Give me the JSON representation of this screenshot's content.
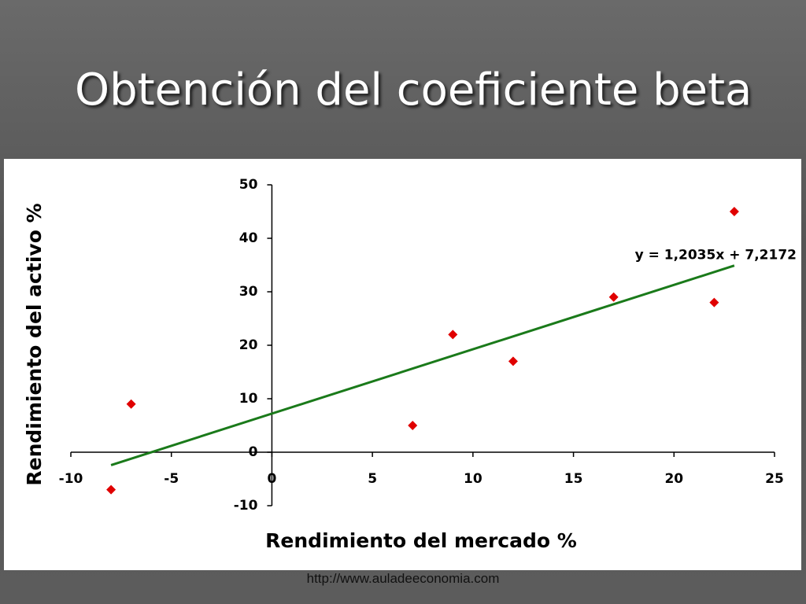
{
  "title": "Obtención del coeficiente beta",
  "footer": "http://www.auladeeconomia.com",
  "chart_data": {
    "type": "scatter",
    "x_label": "Rendimiento del mercado %",
    "y_label": "Rendimiento del activo %",
    "series": [
      {
        "color": "#e00000",
        "x": [
          -8,
          -7,
          7,
          9,
          12,
          17,
          22,
          23
        ],
        "values": [
          -7,
          9,
          5,
          22,
          17,
          29,
          28,
          45
        ]
      }
    ],
    "trendline": {
      "slope": 1.2035,
      "intercept": 7.2172,
      "label": "y = 1,2035x + 7,2172",
      "color": "#1a7a1a"
    },
    "xlim": [
      -10,
      25
    ],
    "xticks": [
      -10,
      -5,
      0,
      5,
      10,
      15,
      20,
      25
    ],
    "ylim": [
      -10,
      50
    ],
    "yticks": [
      -10,
      0,
      10,
      20,
      30,
      40,
      50
    ],
    "grid": false
  }
}
